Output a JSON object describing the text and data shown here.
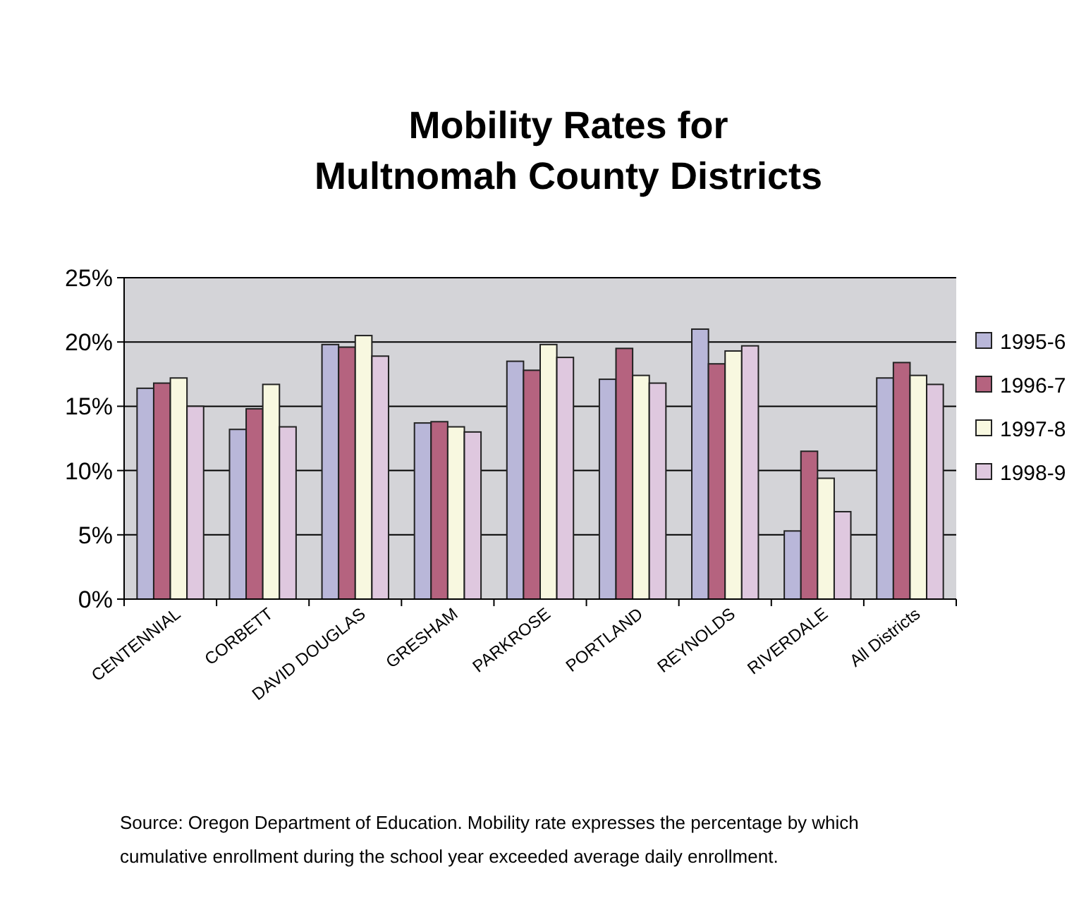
{
  "chart_data": {
    "type": "bar",
    "title": "Mobility Rates for\nMultnomah County Districts",
    "categories": [
      "CENTENNIAL",
      "CORBETT",
      "DAVID DOUGLAS",
      "GRESHAM",
      "PARKROSE",
      "PORTLAND",
      "REYNOLDS",
      "RIVERDALE",
      "All Districts"
    ],
    "series": [
      {
        "name": "1995-6",
        "color": "#b9b7d9",
        "values": [
          16.4,
          13.2,
          19.8,
          13.7,
          18.5,
          17.1,
          21.0,
          5.3,
          17.2
        ]
      },
      {
        "name": "1996-7",
        "color": "#b5637f",
        "values": [
          16.8,
          14.8,
          19.6,
          13.8,
          17.8,
          19.5,
          18.3,
          11.5,
          18.4
        ]
      },
      {
        "name": "1997-8",
        "color": "#f8f8e0",
        "values": [
          17.2,
          16.7,
          20.5,
          13.4,
          19.8,
          17.4,
          19.3,
          9.4,
          17.4
        ]
      },
      {
        "name": "1998-9",
        "color": "#dfc8df",
        "values": [
          15.0,
          13.4,
          18.9,
          13.0,
          18.8,
          16.8,
          19.7,
          6.8,
          16.7
        ]
      }
    ],
    "ylim": [
      0,
      25
    ],
    "yticks": [
      {
        "value": 0,
        "label": "0%"
      },
      {
        "value": 5,
        "label": "5%"
      },
      {
        "value": 10,
        "label": "10%"
      },
      {
        "value": 15,
        "label": "15%"
      },
      {
        "value": 20,
        "label": "20%"
      },
      {
        "value": 25,
        "label": "25%"
      }
    ],
    "grid": "y",
    "legend": "right",
    "annotations": [
      "Source:  Oregon Department of Education. Mobility rate expresses the percentage by which cumulative enrollment during the school year exceeded average daily enrollment."
    ]
  }
}
